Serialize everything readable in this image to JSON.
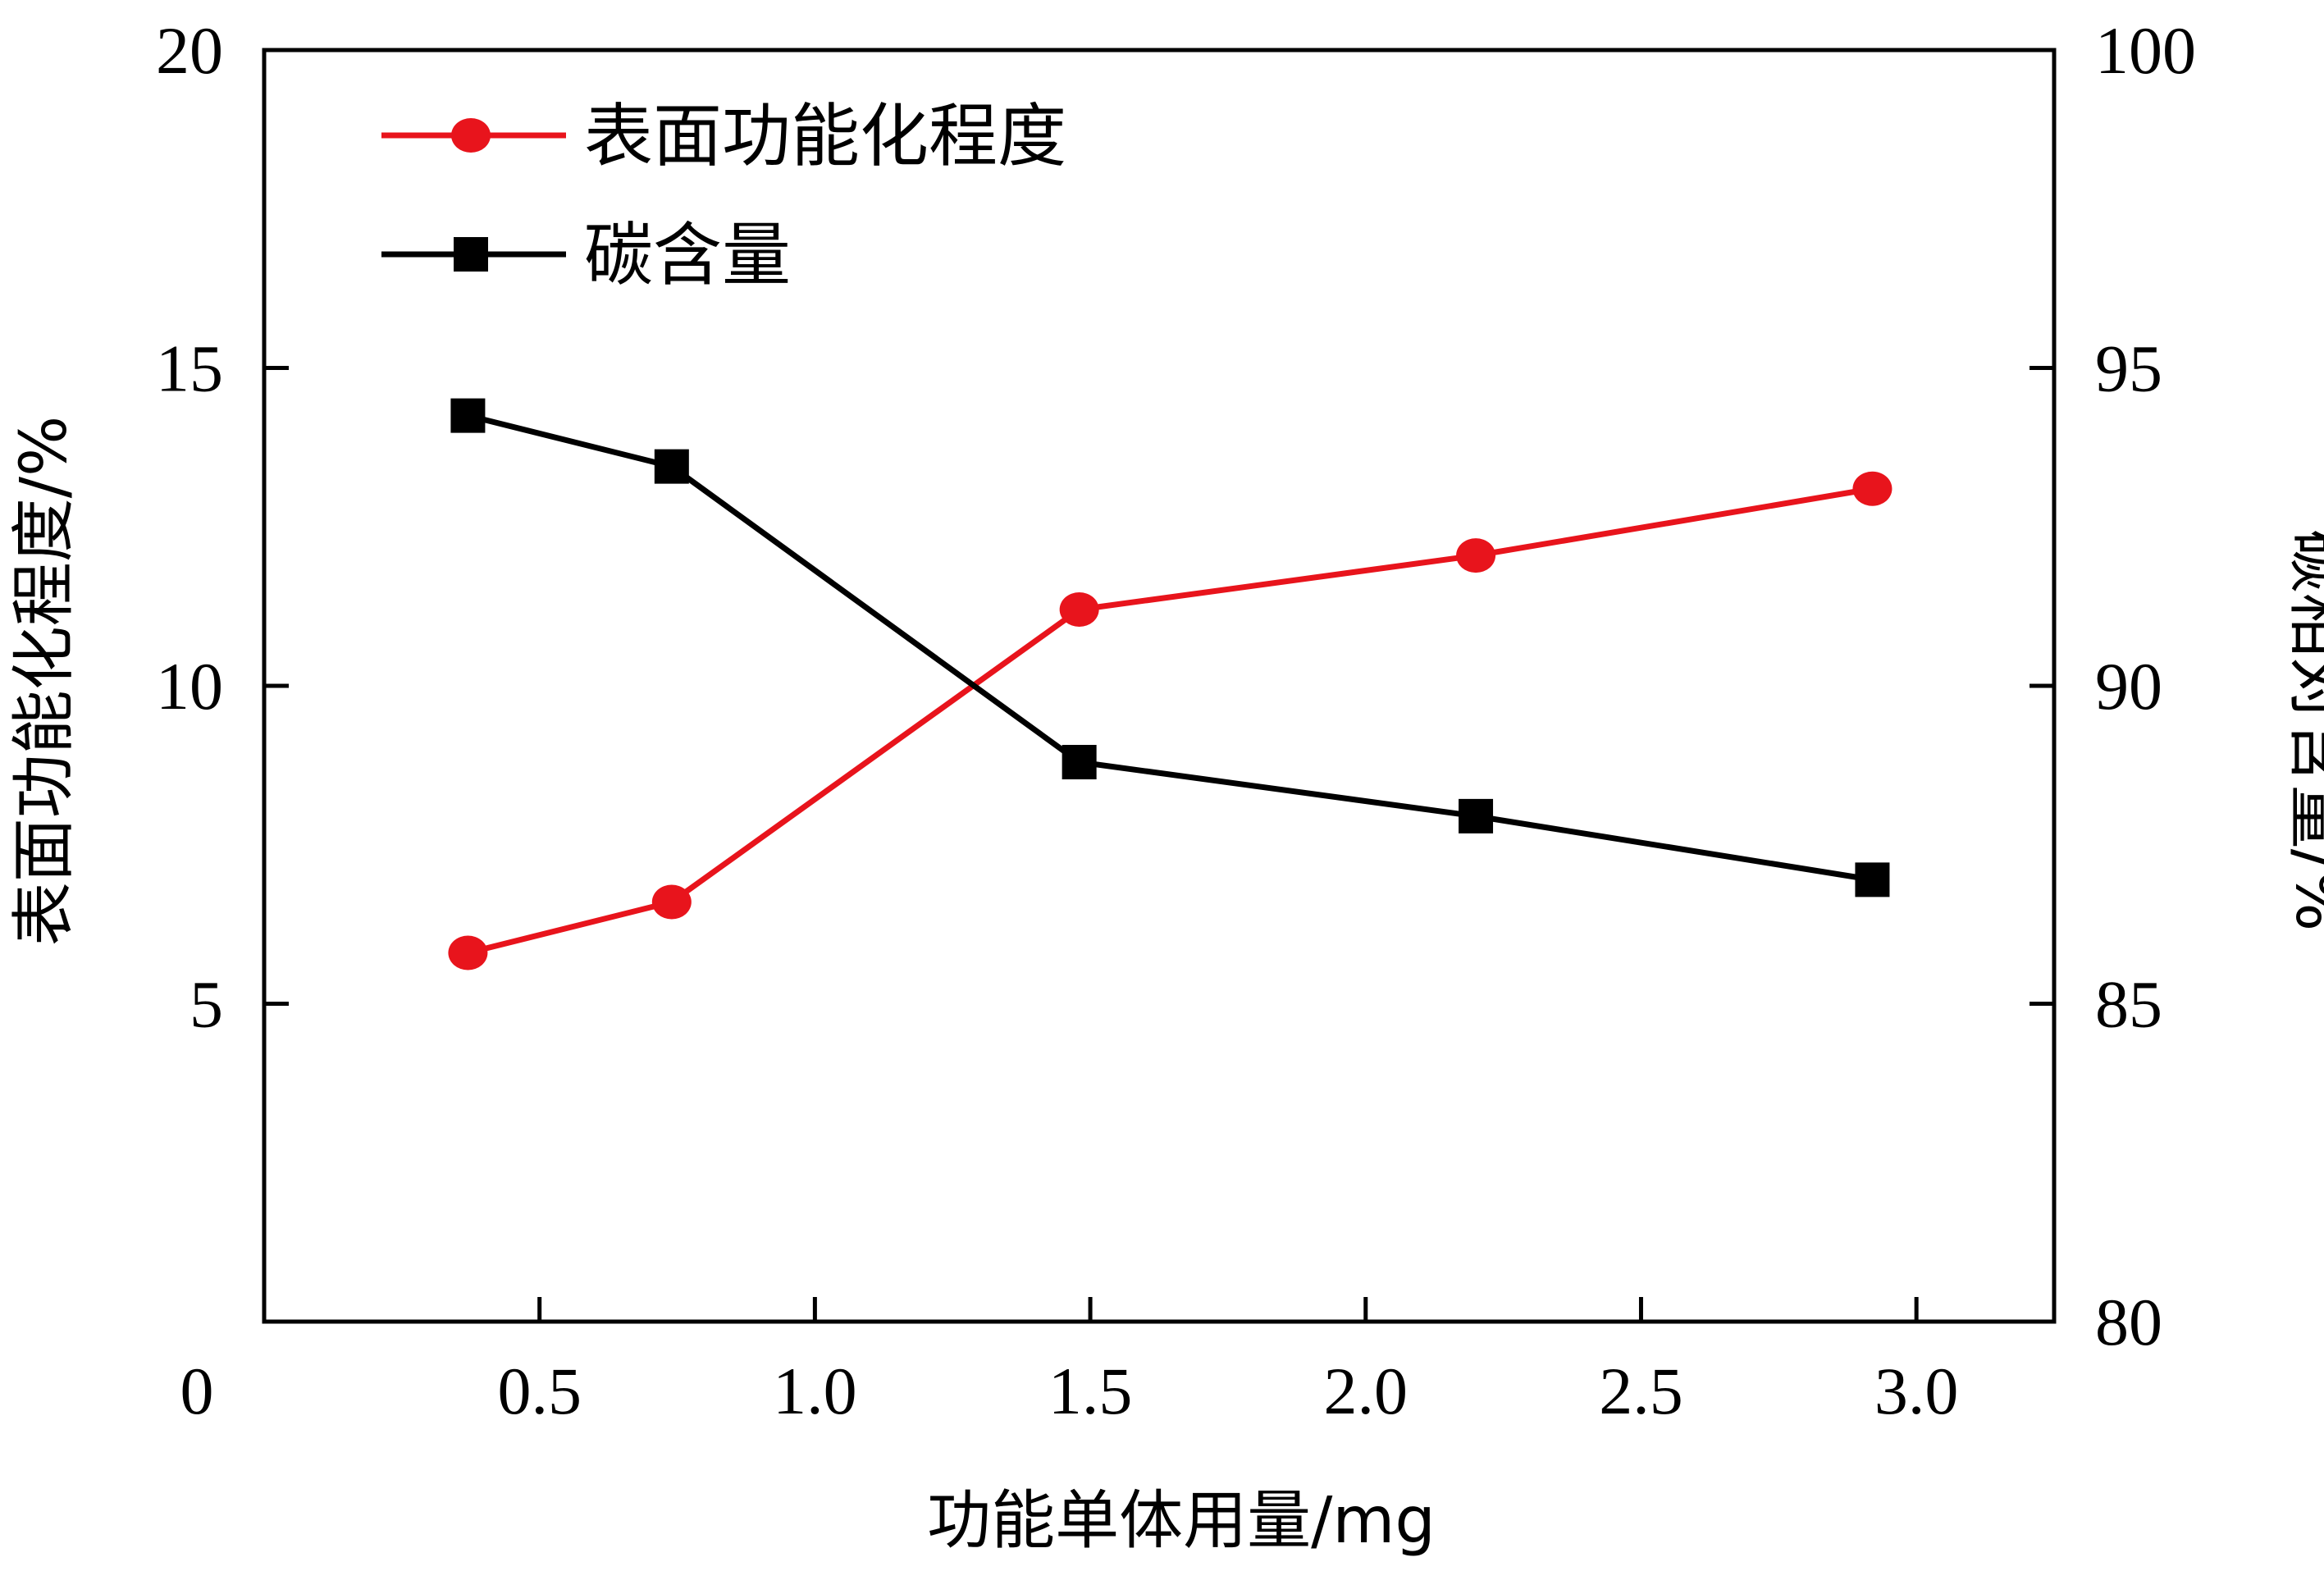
{
  "chart_data": {
    "type": "line",
    "xlabel": "功能单体用量/mg",
    "ylabel_left": "表面功能化程度/%",
    "ylabel_right": "碳相对含量/%",
    "xlim": [
      0,
      3.25
    ],
    "ylim_left": [
      0,
      20
    ],
    "ylim_right": [
      80,
      100
    ],
    "x_ticks": [
      0.5,
      1.0,
      1.5,
      2.0,
      2.5,
      3.0
    ],
    "x_tick_labels": [
      "0.5",
      "1.0",
      "1.5",
      "2.0",
      "2.5",
      "3.0"
    ],
    "x_origin_label": "0",
    "y_left_ticks": [
      5,
      10,
      15,
      20
    ],
    "y_left_tick_labels": [
      "5",
      "10",
      "15",
      "20"
    ],
    "y_right_ticks": [
      80,
      85,
      90,
      95,
      100
    ],
    "y_right_tick_labels": [
      "80",
      "85",
      "90",
      "95",
      "100"
    ],
    "legend_position": "top-left",
    "grid": false,
    "series": [
      {
        "name": "表面功能化程度",
        "axis": "left",
        "color": "#e8141c",
        "marker": "circle",
        "x": [
          0.37,
          0.74,
          1.48,
          2.2,
          2.92
        ],
        "y": [
          5.8,
          6.6,
          11.2,
          12.05,
          13.1
        ]
      },
      {
        "name": "碳含量",
        "axis": "right",
        "color": "#000000",
        "marker": "square",
        "x": [
          0.37,
          0.74,
          1.48,
          2.2,
          2.92
        ],
        "y": [
          94.25,
          93.45,
          88.8,
          87.95,
          86.95
        ]
      }
    ]
  }
}
